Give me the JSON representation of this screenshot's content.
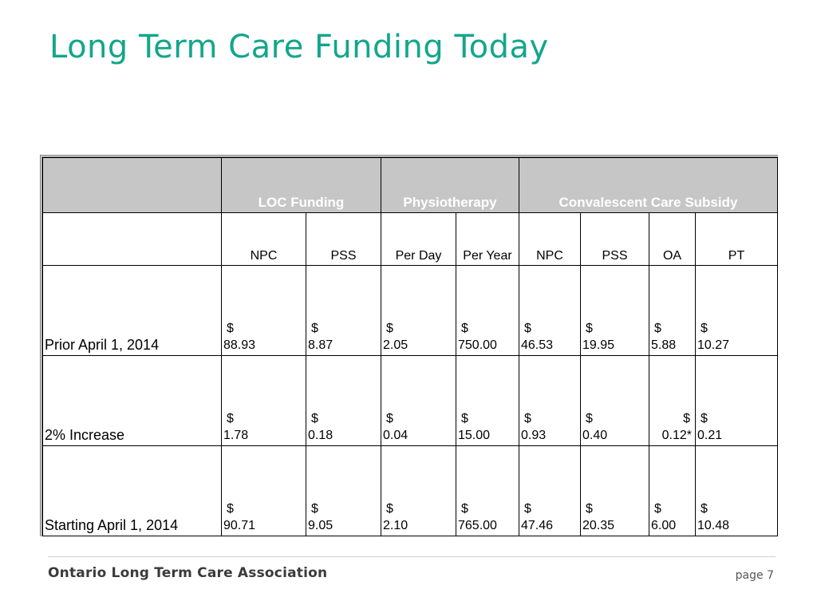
{
  "title": "Long Term Care Funding Today",
  "table": {
    "groups": [
      "",
      "LOC Funding",
      "Physiotherapy",
      "Convalescent Care Subsidy"
    ],
    "subheaders": [
      "",
      "NPC",
      "PSS",
      "Per Day",
      "Per Year",
      "NPC",
      "PSS",
      "OA",
      "PT"
    ],
    "currency_symbol": "$",
    "rows": [
      {
        "label": "Prior April 1, 2014",
        "values": [
          "88.93",
          "8.87",
          "2.05",
          "750.00",
          "46.53",
          "19.95",
          "5.88",
          "10.27"
        ]
      },
      {
        "label": "2% Increase",
        "values": [
          "1.78",
          "0.18",
          "0.04",
          "15.00",
          "0.93",
          "0.40",
          "0.12*",
          "0.21"
        ]
      },
      {
        "label": "Starting April 1, 2014",
        "values": [
          "90.71",
          "9.05",
          "2.10",
          "765.00",
          "47.46",
          "20.35",
          "6.00",
          "10.48"
        ]
      }
    ]
  },
  "footer": {
    "organization": "Ontario Long Term Care Association",
    "page": "page 7"
  },
  "colors": {
    "title": "#13a68c",
    "header_bg": "#c6c6c6",
    "header_text": "#ffffff"
  }
}
